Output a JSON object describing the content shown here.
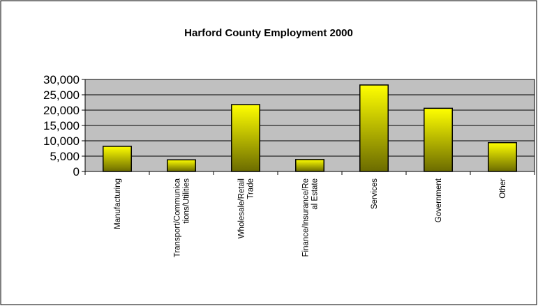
{
  "chart_data": {
    "type": "bar",
    "title": "Harford County Employment 2000",
    "xlabel": "",
    "ylabel": "",
    "categories": [
      [
        "Manufacturing"
      ],
      [
        "Transport/Communica",
        "tions/Utilities"
      ],
      [
        "Wholesale/Retail",
        "Trade"
      ],
      [
        "Finance/Insurance/Re",
        "al Estate"
      ],
      [
        "Services"
      ],
      [
        "Government"
      ],
      [
        "Other"
      ]
    ],
    "values": [
      8200,
      3800,
      21800,
      3900,
      28200,
      20600,
      9400
    ],
    "ylim": [
      0,
      30000
    ],
    "yticks": [
      "0",
      "5,000",
      "10,000",
      "15,000",
      "20,000",
      "25,000",
      "30,000"
    ],
    "ytick_values": [
      0,
      5000,
      10000,
      15000,
      20000,
      25000,
      30000
    ],
    "grid": true,
    "legend": "none",
    "colors": {
      "plot_background": "#c0c0c0",
      "bar_top": "#ffff00",
      "bar_bottom": "#6b6b00",
      "bar_outline": "#000000",
      "gridline": "#000000",
      "frame": "#000000"
    }
  }
}
